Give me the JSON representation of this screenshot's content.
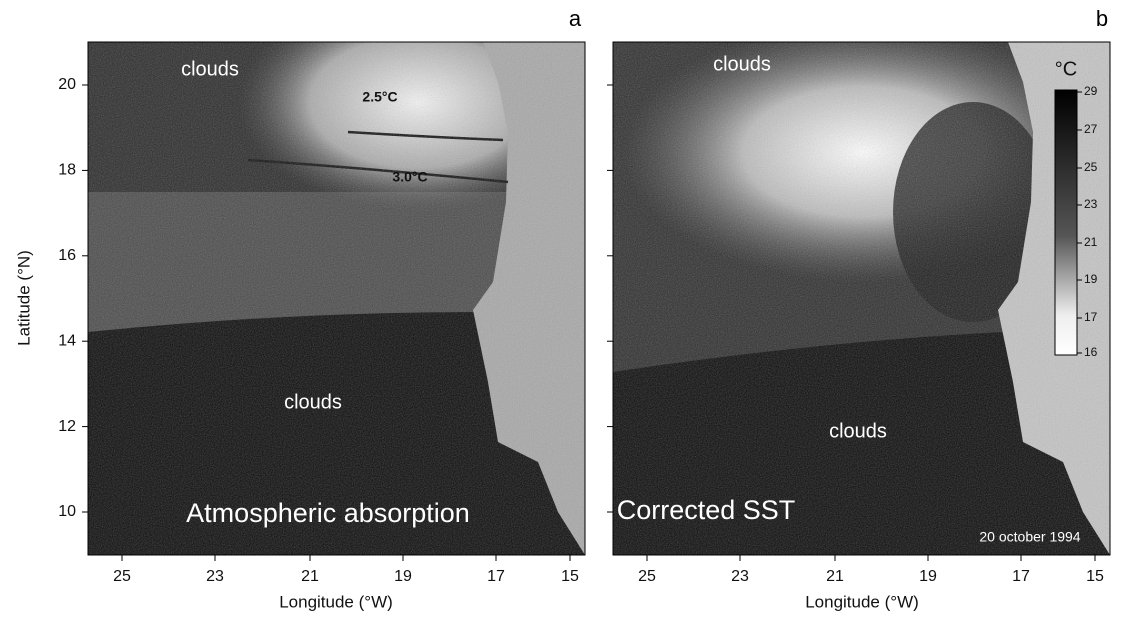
{
  "panels": [
    {
      "letter": "a",
      "label": "Atmospheric absorption",
      "annotations": [
        "clouds",
        "clouds"
      ],
      "contour_labels": [
        "2.5°C",
        "3.0°C"
      ],
      "x_label": "Longitude (°W)",
      "x_ticks": [
        25,
        23,
        21,
        19,
        17,
        15
      ],
      "y_label": "Latitude (°N)",
      "y_ticks": [
        20,
        18,
        16,
        14,
        12,
        10
      ]
    },
    {
      "letter": "b",
      "label": "Corrected SST",
      "annotations": [
        "clouds",
        "clouds"
      ],
      "date": "20 october 1994",
      "x_label": "Longitude (°W)",
      "x_ticks": [
        25,
        23,
        21,
        19,
        17,
        15
      ],
      "colorbar": {
        "unit": "°C",
        "ticks": [
          29,
          27,
          25,
          23,
          21,
          19,
          17,
          16
        ]
      }
    }
  ]
}
